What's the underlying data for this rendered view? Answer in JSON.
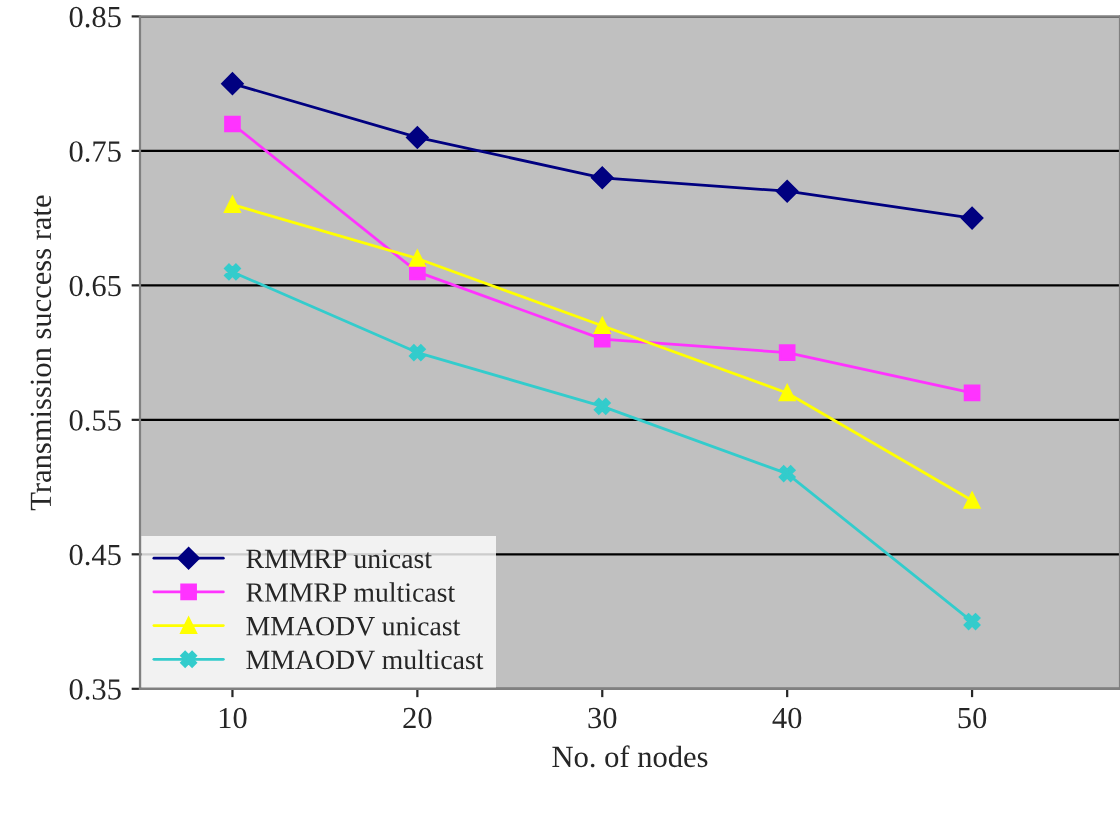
{
  "chart_data": {
    "type": "line",
    "xlabel": "No. of nodes",
    "ylabel": "Transmission success rate",
    "categories": [
      "10",
      "20",
      "30",
      "40",
      "50"
    ],
    "series": [
      {
        "name": "RMMRP unicast",
        "color": "#000080",
        "marker": "diamond",
        "values": [
          0.8,
          0.76,
          0.73,
          0.72,
          0.7
        ]
      },
      {
        "name": "RMMRP multicast",
        "color": "#ff33ff",
        "marker": "square",
        "values": [
          0.77,
          0.66,
          0.61,
          0.6,
          0.57
        ]
      },
      {
        "name": "MMAODV unicast",
        "color": "#ffff00",
        "marker": "triangle",
        "values": [
          0.71,
          0.67,
          0.62,
          0.57,
          0.49
        ]
      },
      {
        "name": "MMAODV multicast",
        "color": "#33cccc",
        "marker": "cross",
        "values": [
          0.66,
          0.6,
          0.56,
          0.51,
          0.4
        ]
      }
    ],
    "ylim": [
      0.35,
      0.85
    ],
    "yticks": [
      0.35,
      0.45,
      0.55,
      0.65,
      0.75,
      0.85
    ],
    "grid": "y",
    "legend": "bottom left",
    "line_style": "solid"
  }
}
